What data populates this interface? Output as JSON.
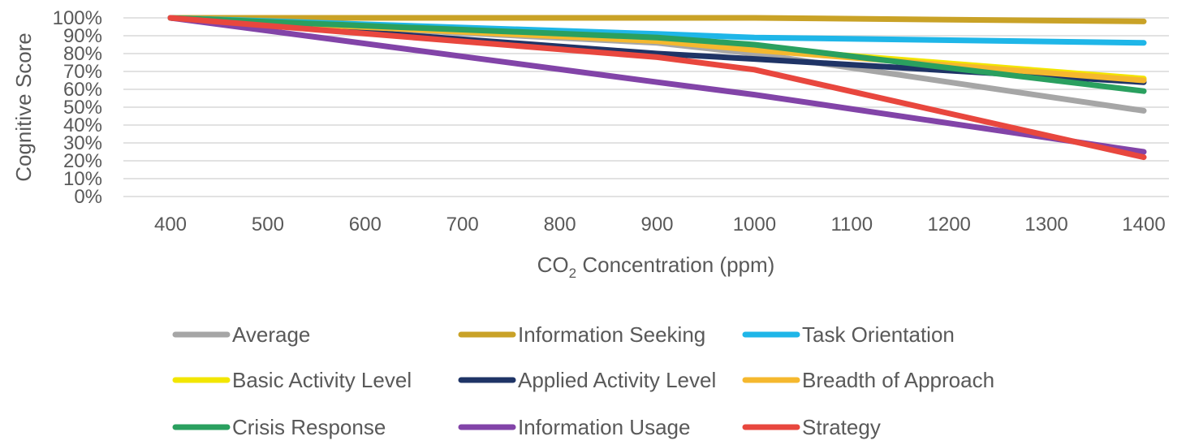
{
  "chart_data": {
    "type": "line",
    "title": "",
    "xlabel": "CO",
    "xlabel_sub": "2",
    "xlabel_rest": " Concentration (ppm)",
    "ylabel": "Cognitive Score",
    "categories": [
      400,
      500,
      600,
      700,
      800,
      900,
      1000,
      1100,
      1200,
      1300,
      1400
    ],
    "x_tick_labels": [
      "400",
      "500",
      "600",
      "700",
      "800",
      "900",
      "1000",
      "1100",
      "1200",
      "1300",
      "1400"
    ],
    "y_tick_labels": [
      "0%",
      "10%",
      "20%",
      "30%",
      "40%",
      "50%",
      "60%",
      "70%",
      "80%",
      "90%",
      "100%"
    ],
    "ylim": [
      0,
      100
    ],
    "grid": true,
    "legend_position": "bottom",
    "series": [
      {
        "name": "Average",
        "color": "#A6A6A6",
        "x": [
          400,
          900,
          1000,
          1400
        ],
        "values": [
          100,
          86,
          80,
          48
        ]
      },
      {
        "name": "Information Seeking",
        "color": "#C9A227",
        "x": [
          400,
          900,
          1000,
          1400
        ],
        "values": [
          100,
          100,
          100,
          98
        ]
      },
      {
        "name": "Task Orientation",
        "color": "#1FB6E8",
        "x": [
          400,
          900,
          1000,
          1400
        ],
        "values": [
          100,
          91,
          89,
          86
        ]
      },
      {
        "name": "Basic Activity Level",
        "color": "#F2E600",
        "x": [
          400,
          900,
          1000,
          1400
        ],
        "values": [
          100,
          88,
          83,
          66
        ]
      },
      {
        "name": "Applied Activity Level",
        "color": "#1F3466",
        "x": [
          400,
          900,
          1000,
          1400
        ],
        "values": [
          100,
          80,
          77,
          64
        ]
      },
      {
        "name": "Breadth of Approach",
        "color": "#F5B82E",
        "x": [
          400,
          900,
          1000,
          1400
        ],
        "values": [
          100,
          87,
          82,
          65
        ]
      },
      {
        "name": "Crisis Response",
        "color": "#2AA05F",
        "x": [
          400,
          900,
          1000,
          1400
        ],
        "values": [
          100,
          89,
          85,
          59
        ]
      },
      {
        "name": "Information Usage",
        "color": "#8244A8",
        "x": [
          400,
          900,
          1000,
          1400
        ],
        "values": [
          100,
          64,
          57,
          25
        ]
      },
      {
        "name": "Strategy",
        "color": "#E8473E",
        "x": [
          400,
          900,
          1000,
          1400
        ],
        "values": [
          100,
          78,
          71,
          22
        ]
      }
    ]
  }
}
